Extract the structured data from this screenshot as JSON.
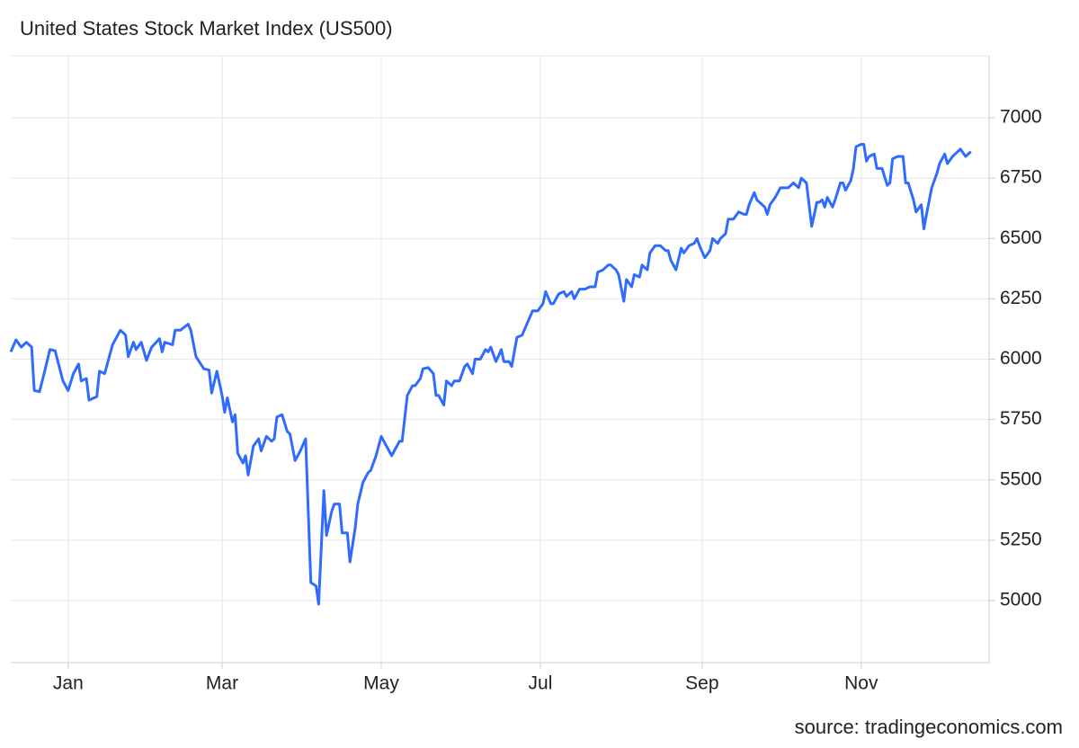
{
  "chart_data": {
    "type": "line",
    "title": "United States Stock Market Index (US500)",
    "source": "source: tradingeconomics.com",
    "x": [
      -22,
      -20,
      -18,
      -16,
      -14,
      -13,
      -11,
      -9,
      -7,
      -5,
      -2,
      0,
      2,
      4,
      5,
      7,
      8,
      11,
      12,
      14,
      17,
      20,
      22,
      23,
      25,
      26,
      28,
      30,
      32,
      35,
      36,
      37,
      40,
      41,
      43,
      46,
      47,
      49,
      52,
      54,
      55,
      57,
      59,
      60,
      61,
      63,
      64,
      65,
      67,
      68,
      69,
      71,
      73,
      74,
      76,
      78,
      79,
      80,
      82,
      84,
      85,
      87,
      89,
      91,
      93,
      95,
      96,
      98,
      99,
      101,
      102,
      104,
      105,
      107,
      108,
      110,
      111,
      113,
      115,
      116,
      118,
      120,
      122,
      124,
      127,
      128,
      130,
      132,
      133,
      135,
      136,
      138,
      140,
      141,
      142,
      144,
      145,
      147,
      148,
      150,
      152,
      153,
      155,
      156,
      158,
      160,
      161,
      162,
      164,
      166,
      167,
      169,
      170,
      172,
      174,
      176,
      178,
      180,
      182,
      183,
      185,
      186,
      188,
      190,
      191,
      193,
      194,
      196,
      198,
      200,
      202,
      203,
      205,
      207,
      208,
      210,
      211,
      213,
      214,
      216,
      217,
      219,
      220,
      222,
      223,
      225,
      227,
      229,
      230,
      231,
      233,
      235,
      236,
      238,
      240,
      241,
      242,
      244,
      246,
      247,
      249,
      250,
      252,
      253,
      255,
      257,
      259,
      260,
      261,
      263,
      264,
      267,
      268,
      269,
      271,
      273,
      276,
      277,
      278,
      280,
      281,
      283,
      285,
      287,
      288,
      289,
      290,
      291,
      293,
      294,
      296,
      297,
      298,
      300,
      301,
      302,
      304,
      305,
      306,
      307,
      309,
      310,
      312,
      314,
      315,
      316,
      318,
      320,
      321,
      322,
      324,
      325,
      327,
      328,
      329,
      331,
      333,
      334,
      336,
      337,
      339,
      340,
      342,
      344,
      346
    ],
    "series": [
      {
        "name": "US500",
        "color": "#2f6bff",
        "values": [
          6030,
          6080,
          6050,
          6070,
          6050,
          5870,
          5865,
          5950,
          6040,
          6035,
          5910,
          5870,
          5940,
          5980,
          5910,
          5920,
          5830,
          5845,
          5950,
          5940,
          6060,
          6120,
          6100,
          6010,
          6070,
          6040,
          6070,
          5995,
          6050,
          6085,
          6030,
          6070,
          6060,
          6120,
          6120,
          6145,
          6120,
          6010,
          5960,
          5955,
          5860,
          5950,
          5850,
          5780,
          5840,
          5740,
          5770,
          5610,
          5570,
          5600,
          5520,
          5640,
          5670,
          5620,
          5680,
          5660,
          5670,
          5760,
          5770,
          5700,
          5690,
          5580,
          5620,
          5670,
          5075,
          5060,
          4985,
          5455,
          5270,
          5370,
          5400,
          5400,
          5280,
          5280,
          5160,
          5300,
          5400,
          5490,
          5530,
          5540,
          5600,
          5680,
          5640,
          5600,
          5660,
          5660,
          5850,
          5890,
          5890,
          5920,
          5960,
          5965,
          5940,
          5850,
          5850,
          5810,
          5910,
          5890,
          5910,
          5910,
          5970,
          5980,
          5940,
          6000,
          6000,
          6040,
          6030,
          6050,
          5990,
          6040,
          5990,
          5990,
          5970,
          6090,
          6100,
          6150,
          6200,
          6200,
          6230,
          6280,
          6230,
          6230,
          6270,
          6280,
          6260,
          6280,
          6250,
          6290,
          6290,
          6300,
          6300,
          6360,
          6370,
          6390,
          6390,
          6370,
          6350,
          6240,
          6330,
          6300,
          6350,
          6340,
          6390,
          6370,
          6440,
          6470,
          6470,
          6450,
          6450,
          6410,
          6370,
          6460,
          6440,
          6470,
          6480,
          6500,
          6470,
          6420,
          6450,
          6500,
          6480,
          6500,
          6520,
          6580,
          6580,
          6610,
          6600,
          6600,
          6640,
          6690,
          6660,
          6630,
          6600,
          6640,
          6670,
          6710,
          6710,
          6720,
          6730,
          6710,
          6750,
          6730,
          6550,
          6650,
          6650,
          6660,
          6630,
          6670,
          6630,
          6660,
          6730,
          6730,
          6700,
          6740,
          6790,
          6880,
          6890,
          6890,
          6820,
          6840,
          6850,
          6790,
          6790,
          6720,
          6730,
          6830,
          6840,
          6840,
          6730,
          6730,
          6660,
          6610,
          6640,
          6540,
          6600,
          6710,
          6770,
          6810,
          6850,
          6810,
          6840,
          6850,
          6870,
          6840,
          6860
        ]
      }
    ],
    "xlim": [
      -22,
      353
    ],
    "xticks": [
      {
        "value": 0,
        "label": "Jan"
      },
      {
        "value": 59,
        "label": "Mar"
      },
      {
        "value": 120,
        "label": "May"
      },
      {
        "value": 181,
        "label": "Jul"
      },
      {
        "value": 243,
        "label": "Sep"
      },
      {
        "value": 304,
        "label": "Nov"
      }
    ],
    "ylim": [
      4743,
      7257
    ],
    "yticks": [
      5000,
      5250,
      5500,
      5750,
      6000,
      6250,
      6500,
      6750,
      7000
    ],
    "grid": true
  }
}
